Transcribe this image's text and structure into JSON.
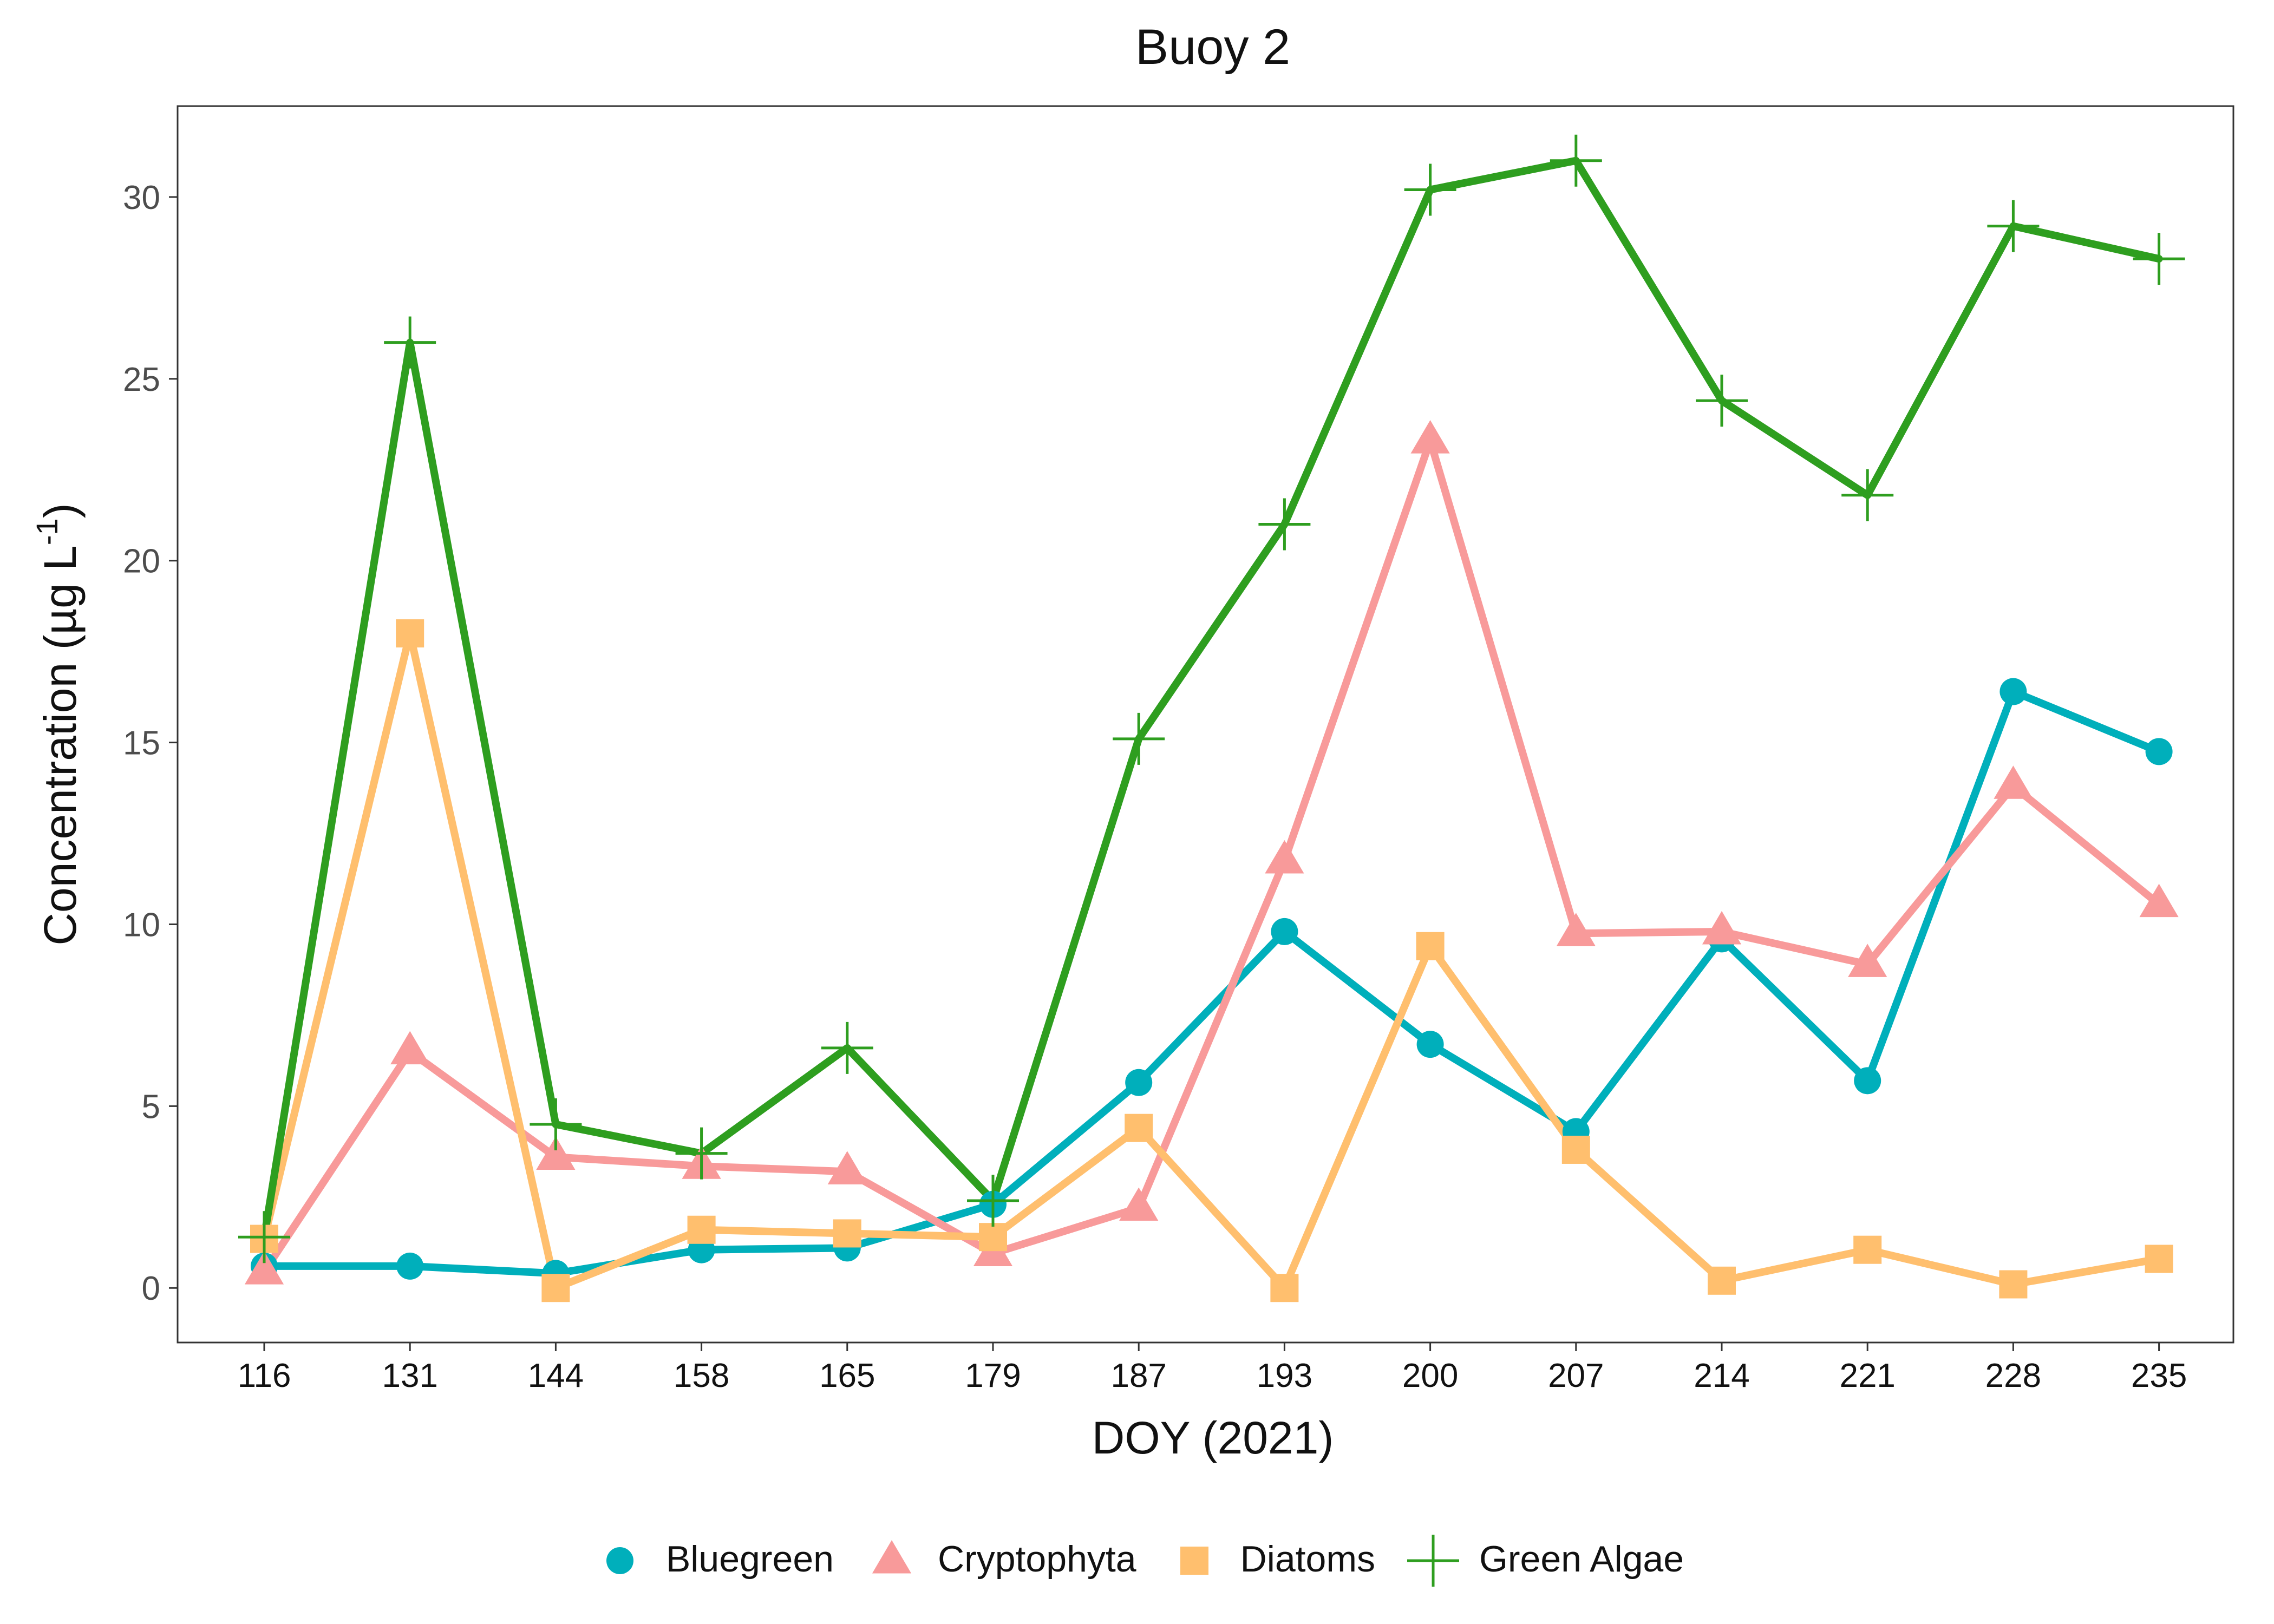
{
  "chart_data": {
    "type": "line",
    "title": "Buoy 2",
    "xlabel": "DOY (2021)",
    "ylabel": "Concentration (µg L",
    "ylabel_superscript": "-1",
    "ylabel_suffix": ")",
    "categories": [
      "116",
      "131",
      "144",
      "158",
      "165",
      "179",
      "187",
      "193",
      "200",
      "207",
      "214",
      "221",
      "228",
      "235"
    ],
    "ylim": [
      -1.5,
      32.5
    ],
    "yticks": [
      0,
      5,
      10,
      15,
      20,
      25,
      30
    ],
    "grid": false,
    "legend_position": "bottom",
    "series": [
      {
        "name": "Bluegreen",
        "color": "#00AFBB",
        "marker": "circle",
        "values": [
          0.6,
          0.6,
          0.4,
          1.05,
          1.1,
          2.3,
          5.65,
          9.8,
          6.7,
          4.3,
          9.6,
          5.7,
          16.4,
          14.75
        ]
      },
      {
        "name": "Cryptophyta",
        "color": "#F89A9A",
        "marker": "triangle",
        "values": [
          0.45,
          6.5,
          3.6,
          3.35,
          3.2,
          0.95,
          2.2,
          11.75,
          23.3,
          9.75,
          9.8,
          8.9,
          13.8,
          10.55
        ]
      },
      {
        "name": "Diatoms",
        "color": "#FFBF6E",
        "marker": "square",
        "values": [
          1.35,
          18.0,
          0.0,
          1.6,
          1.5,
          1.4,
          4.4,
          0.0,
          9.4,
          3.8,
          0.2,
          1.05,
          0.1,
          0.8
        ]
      },
      {
        "name": "Green Algae",
        "color": "#2E9E1F",
        "marker": "plus",
        "values": [
          1.4,
          26.0,
          4.5,
          3.7,
          6.6,
          2.4,
          15.1,
          21.0,
          30.2,
          31.0,
          24.4,
          21.8,
          29.2,
          28.3
        ]
      }
    ]
  }
}
